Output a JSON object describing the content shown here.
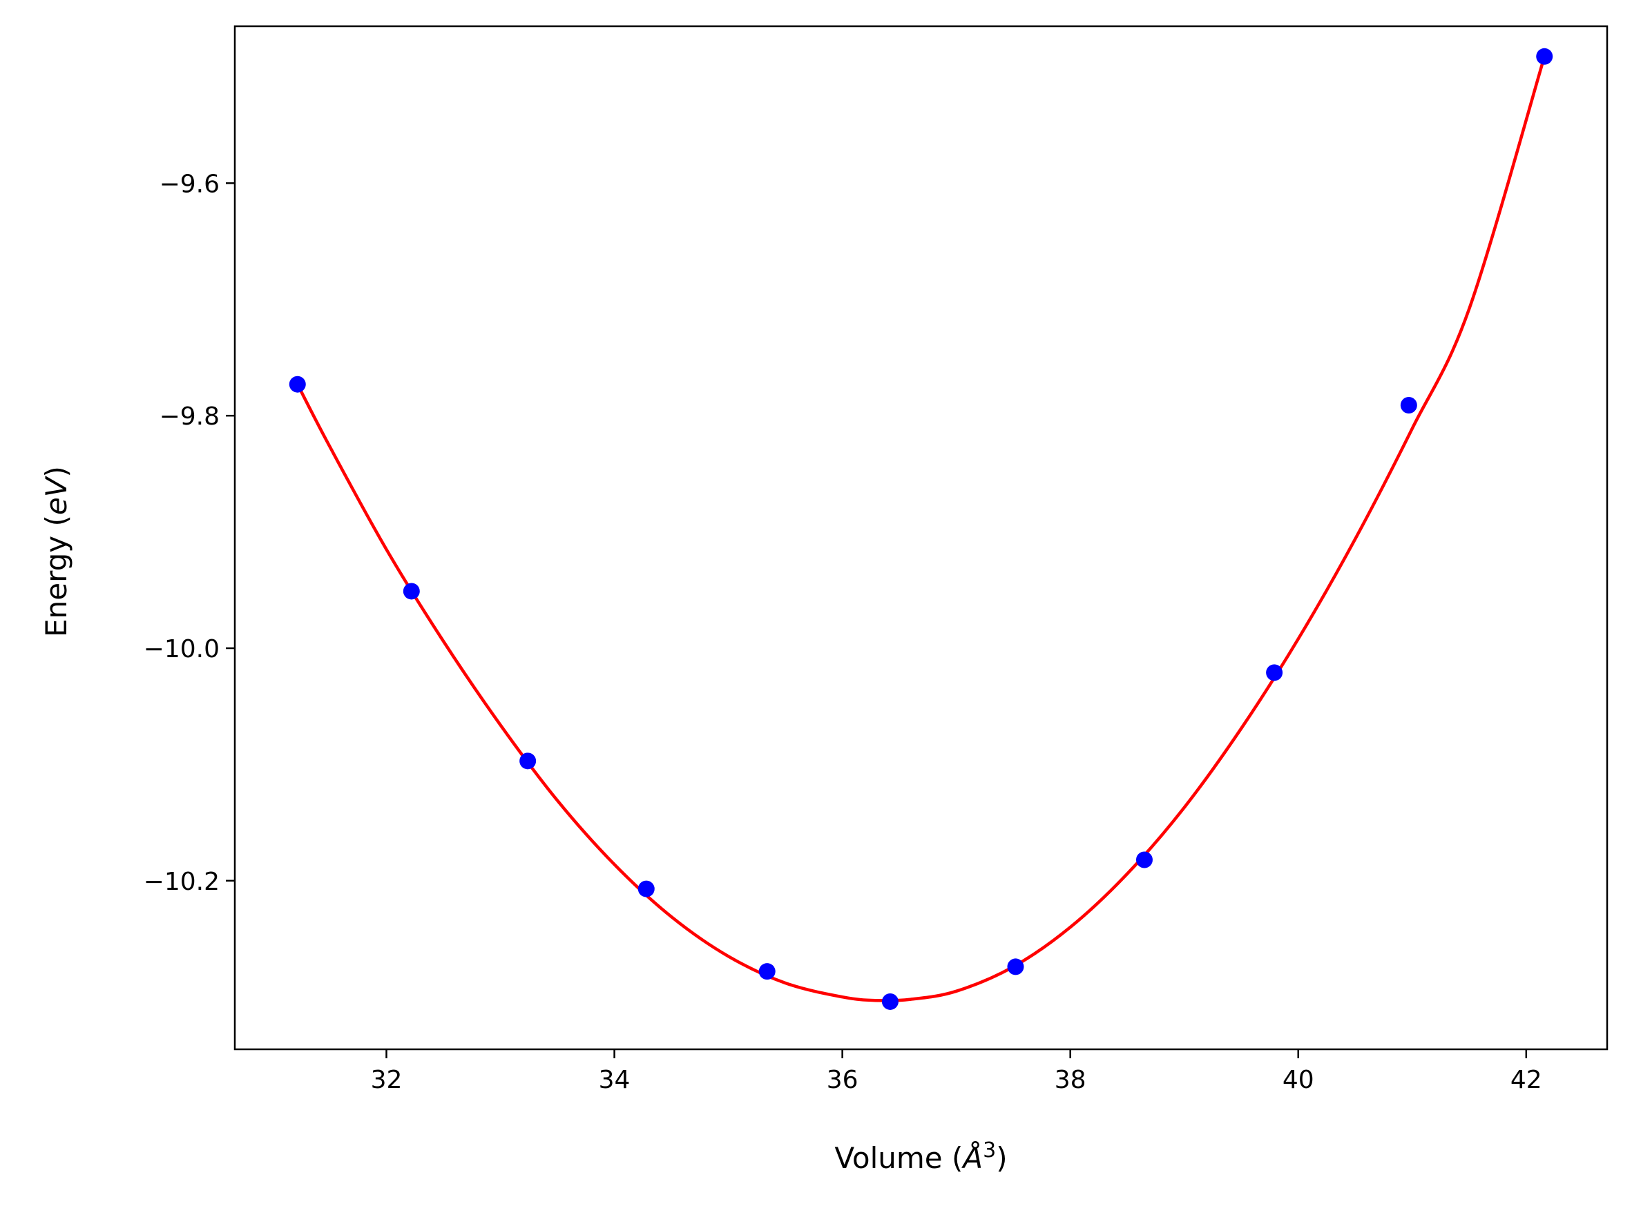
{
  "chart_data": {
    "type": "scatter",
    "title": "",
    "xlabel": "Volume (Å³)",
    "xlabel_parts": {
      "prefix": "Volume (",
      "symbol": "Å",
      "sup": "3",
      "suffix": ")"
    },
    "ylabel": "Energy (eV)",
    "ylabel_parts": {
      "prefix": "Energy (",
      "italic": "eV",
      "suffix": ")"
    },
    "xlim": [
      30.67,
      42.71
    ],
    "ylim": [
      -10.345,
      -9.465
    ],
    "x_ticks": [
      32,
      34,
      36,
      38,
      40,
      42
    ],
    "x_tick_labels": [
      "32",
      "34",
      "36",
      "38",
      "40",
      "42"
    ],
    "y_ticks": [
      -9.6,
      -9.8,
      -10.0,
      -10.2
    ],
    "y_tick_labels": [
      "−9.6",
      "−9.8",
      "−10.0",
      "−10.2"
    ],
    "grid": false,
    "legend": null,
    "colors": {
      "points": "#0000ff",
      "fit_line": "#ff0000",
      "axes": "#000000"
    },
    "series": [
      {
        "kind": "scatter",
        "x": [
          31.22,
          32.22,
          33.24,
          34.28,
          35.34,
          36.42,
          37.52,
          38.65,
          39.79,
          40.97,
          42.16
        ],
        "y": [
          -9.773,
          -9.951,
          -10.097,
          -10.207,
          -10.278,
          -10.304,
          -10.274,
          -10.182,
          -10.021,
          -9.791,
          -9.491
        ]
      },
      {
        "kind": "line",
        "x": [
          31.22,
          31.5,
          32.0,
          32.5,
          33.0,
          33.5,
          34.0,
          34.5,
          35.0,
          35.5,
          36.0,
          36.3,
          36.6,
          37.0,
          37.5,
          38.0,
          38.5,
          39.0,
          39.5,
          40.0,
          40.5,
          41.0,
          41.5,
          42.16
        ],
        "y": [
          -9.773,
          -9.826,
          -9.915,
          -9.994,
          -10.066,
          -10.131,
          -10.186,
          -10.231,
          -10.265,
          -10.288,
          -10.3,
          -10.303,
          -10.302,
          -10.295,
          -10.274,
          -10.24,
          -10.194,
          -10.137,
          -10.069,
          -9.992,
          -9.906,
          -9.811,
          -9.708,
          -9.491
        ]
      }
    ]
  }
}
